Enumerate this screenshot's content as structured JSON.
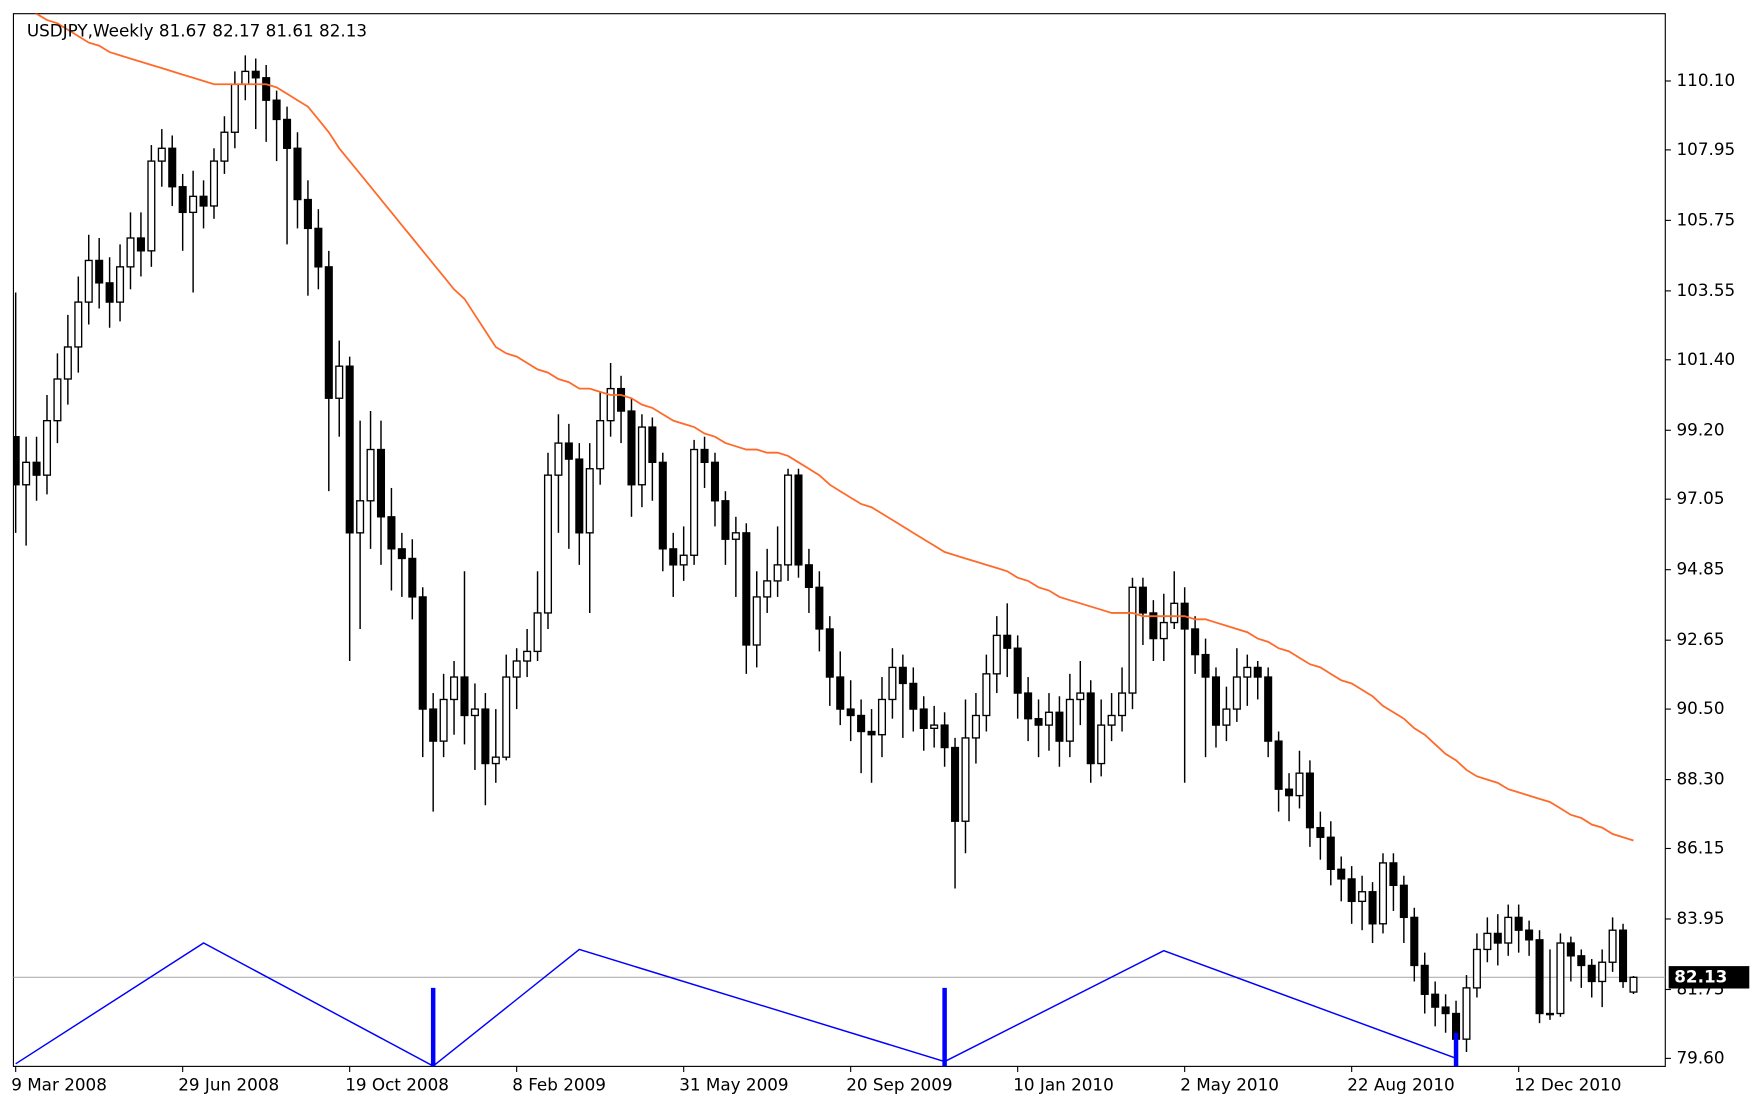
{
  "chart_data": {
    "type": "candlestick",
    "title": "USDJPY,Weekly  81.67 82.17 81.61 82.13",
    "categories": [
      "9 Mar 2008",
      null,
      null,
      null,
      null,
      null,
      null,
      null,
      null,
      null,
      null,
      null,
      null,
      null,
      null,
      null,
      "29 Jun 2008",
      null,
      null,
      null,
      null,
      null,
      null,
      null,
      null,
      null,
      null,
      null,
      null,
      null,
      null,
      null,
      "19 Oct 2008",
      null,
      null,
      null,
      null,
      null,
      null,
      null,
      null,
      null,
      null,
      null,
      null,
      null,
      null,
      null,
      "8 Feb 2009",
      null,
      null,
      null,
      null,
      null,
      null,
      null,
      null,
      null,
      null,
      null,
      null,
      null,
      null,
      null,
      "31 May 2009",
      null,
      null,
      null,
      null,
      null,
      null,
      null,
      null,
      null,
      null,
      null,
      null,
      null,
      null,
      null,
      "20 Sep 2009",
      null,
      null,
      null,
      null,
      null,
      null,
      null,
      null,
      null,
      null,
      null,
      null,
      null,
      null,
      null,
      "10 Jan 2010",
      null,
      null,
      null,
      null,
      null,
      null,
      null,
      null,
      null,
      null,
      null,
      null,
      null,
      null,
      null,
      "2 May 2010",
      null,
      null,
      null,
      null,
      null,
      null,
      null,
      null,
      null,
      null,
      null,
      null,
      null,
      null,
      null,
      "22 Aug 2010",
      null,
      null,
      null,
      null,
      null,
      null,
      null,
      null,
      null,
      null,
      null,
      null,
      null,
      null,
      null,
      "12 Dec 2010",
      null,
      null,
      null,
      null,
      null,
      null,
      null,
      null,
      null,
      null,
      null
    ],
    "open": [
      99.0,
      97.5,
      98.2,
      97.8,
      99.5,
      100.8,
      101.8,
      103.2,
      104.5,
      103.8,
      103.2,
      104.3,
      105.2,
      104.8,
      107.6,
      108.0,
      106.8,
      106.0,
      106.5,
      106.2,
      107.6,
      108.5,
      110.0,
      110.4,
      110.2,
      109.5,
      108.9,
      108.0,
      106.4,
      105.5,
      104.3,
      100.2,
      101.2,
      96.0,
      97.0,
      98.6,
      96.5,
      95.5,
      95.2,
      94.0,
      90.5,
      89.5,
      90.8,
      91.5,
      90.3,
      90.5,
      88.8,
      89.0,
      91.5,
      92.0,
      92.3,
      93.5,
      97.8,
      98.8,
      98.3,
      96.0,
      98.0,
      99.5,
      100.5,
      99.8,
      97.5,
      99.3,
      98.2,
      95.5,
      95.0,
      95.3,
      98.6,
      98.2,
      97.0,
      95.8,
      96.0,
      92.5,
      94.0,
      94.5,
      95.0,
      97.8,
      95.0,
      94.3,
      93.0,
      91.5,
      90.5,
      90.3,
      89.8,
      89.7,
      90.8,
      91.8,
      91.3,
      90.5,
      89.9,
      90.0,
      89.3,
      87.0,
      89.6,
      90.3,
      91.6,
      92.8,
      92.4,
      91.0,
      90.2,
      90.0,
      90.4,
      89.5,
      90.8,
      91.0,
      88.8,
      90.0,
      90.3,
      91.0,
      94.3,
      93.5,
      92.7,
      93.2,
      93.8,
      93.0,
      92.2,
      91.5,
      90.0,
      90.5,
      91.5,
      91.8,
      91.5,
      89.5,
      88.0,
      87.8,
      88.5,
      86.8,
      86.5,
      85.5,
      85.2,
      84.5,
      84.8,
      83.8,
      85.7,
      85.0,
      84.0,
      82.5,
      81.6,
      81.2,
      81.0,
      80.2,
      81.8,
      83.0,
      83.5,
      83.2,
      84.0,
      83.6,
      83.3,
      81.0,
      81.0,
      83.2,
      82.8,
      82.5,
      82.0,
      82.6,
      83.6,
      81.67
    ],
    "high": [
      103.5,
      99.0,
      99.0,
      100.3,
      101.6,
      102.8,
      104.0,
      105.3,
      105.2,
      104.6,
      105.0,
      106.0,
      106.0,
      108.1,
      108.6,
      108.4,
      107.2,
      107.3,
      107.0,
      108.0,
      109.0,
      110.4,
      110.9,
      110.8,
      110.6,
      109.8,
      109.3,
      108.5,
      107.0,
      106.1,
      104.8,
      102.0,
      101.5,
      99.5,
      99.8,
      99.5,
      97.4,
      96.0,
      95.8,
      94.3,
      91.0,
      91.6,
      92.0,
      94.8,
      91.3,
      91.0,
      90.5,
      92.2,
      92.4,
      93.0,
      94.8,
      98.5,
      99.7,
      99.4,
      98.8,
      98.8,
      100.4,
      101.3,
      100.9,
      100.2,
      99.7,
      99.6,
      98.5,
      96.0,
      96.2,
      98.9,
      99.0,
      98.5,
      97.3,
      96.5,
      96.3,
      94.8,
      95.5,
      96.2,
      98.0,
      98.0,
      95.5,
      94.8,
      93.4,
      92.3,
      91.4,
      90.8,
      90.5,
      91.5,
      92.4,
      92.2,
      91.8,
      90.9,
      90.6,
      90.4,
      89.6,
      90.8,
      91.0,
      92.2,
      93.4,
      93.8,
      92.8,
      91.5,
      90.8,
      91.0,
      90.9,
      91.6,
      92.0,
      91.4,
      90.8,
      91.0,
      91.8,
      94.6,
      94.6,
      93.9,
      94.1,
      94.8,
      94.3,
      93.4,
      92.7,
      91.8,
      91.2,
      92.4,
      92.2,
      92.0,
      91.8,
      89.8,
      88.5,
      89.2,
      88.9,
      87.3,
      87.0,
      85.9,
      85.6,
      85.3,
      85.1,
      86.0,
      86.0,
      85.3,
      84.3,
      82.9,
      82.0,
      81.6,
      81.4,
      82.2,
      83.5,
      84.0,
      84.1,
      84.4,
      84.4,
      83.9,
      83.6,
      83.0,
      83.5,
      83.4,
      83.0,
      82.7,
      83.0,
      84.0,
      83.8,
      82.17
    ],
    "low": [
      96.0,
      95.6,
      97.0,
      97.2,
      98.8,
      100.0,
      101.0,
      102.5,
      103.0,
      102.4,
      102.6,
      103.6,
      104.0,
      104.3,
      106.8,
      106.2,
      104.8,
      103.5,
      105.5,
      105.8,
      107.2,
      108.0,
      109.5,
      108.6,
      108.2,
      107.6,
      105.0,
      105.5,
      103.4,
      103.6,
      97.3,
      99.0,
      92.0,
      93.0,
      95.5,
      95.0,
      94.2,
      94.0,
      93.3,
      89.0,
      87.3,
      89.0,
      89.7,
      89.4,
      88.6,
      87.5,
      88.2,
      88.9,
      90.5,
      91.5,
      92.0,
      93.0,
      96.0,
      95.5,
      95.0,
      93.5,
      97.5,
      99.0,
      98.8,
      96.5,
      96.8,
      97.0,
      94.8,
      94.0,
      94.5,
      95.0,
      97.4,
      96.2,
      95.0,
      94.0,
      91.6,
      91.8,
      93.5,
      94.0,
      94.5,
      94.6,
      93.5,
      92.3,
      90.6,
      90.0,
      89.5,
      88.5,
      88.2,
      89.0,
      90.2,
      89.6,
      89.8,
      89.2,
      89.3,
      88.7,
      84.9,
      86.0,
      88.8,
      89.8,
      91.0,
      91.5,
      90.2,
      89.5,
      89.0,
      89.2,
      88.7,
      89.0,
      90.0,
      88.2,
      88.4,
      89.5,
      89.8,
      90.5,
      92.5,
      92.0,
      92.0,
      93.0,
      88.2,
      91.6,
      89.0,
      89.3,
      89.5,
      90.1,
      90.6,
      90.8,
      89.0,
      87.3,
      87.0,
      87.4,
      86.2,
      85.8,
      85.0,
      84.5,
      83.8,
      83.6,
      83.2,
      83.5,
      84.2,
      83.2,
      82.0,
      81.0,
      80.6,
      80.4,
      79.6,
      79.8,
      81.5,
      82.6,
      82.5,
      82.8,
      82.9,
      82.8,
      80.7,
      80.8,
      80.9,
      82.0,
      81.8,
      81.5,
      81.2,
      82.3,
      81.8,
      81.61
    ],
    "close": [
      97.5,
      98.2,
      97.8,
      99.5,
      100.8,
      101.8,
      103.2,
      104.5,
      103.8,
      103.2,
      104.3,
      105.2,
      104.8,
      107.6,
      108.0,
      106.8,
      106.0,
      106.5,
      106.2,
      107.6,
      108.5,
      110.0,
      110.4,
      110.2,
      109.5,
      108.9,
      108.0,
      106.4,
      105.5,
      104.3,
      100.2,
      101.2,
      96.0,
      97.0,
      98.6,
      96.5,
      95.5,
      95.2,
      94.0,
      90.5,
      89.5,
      90.8,
      91.5,
      90.3,
      90.5,
      88.8,
      89.0,
      91.5,
      92.0,
      92.3,
      93.5,
      97.8,
      98.8,
      98.3,
      96.0,
      98.0,
      99.5,
      100.5,
      99.8,
      97.5,
      99.3,
      98.2,
      95.5,
      95.0,
      95.3,
      98.6,
      98.2,
      97.0,
      95.8,
      96.0,
      92.5,
      94.0,
      94.5,
      95.0,
      97.8,
      95.0,
      94.3,
      93.0,
      91.5,
      90.5,
      90.3,
      89.8,
      89.7,
      90.8,
      91.8,
      91.3,
      90.5,
      89.9,
      90.0,
      89.3,
      87.0,
      89.6,
      90.3,
      91.6,
      92.8,
      92.4,
      91.0,
      90.2,
      90.0,
      90.4,
      89.5,
      90.8,
      91.0,
      88.8,
      90.0,
      90.3,
      91.0,
      94.3,
      93.5,
      92.7,
      93.2,
      93.8,
      93.0,
      92.2,
      91.5,
      90.0,
      90.5,
      91.5,
      91.8,
      91.5,
      89.5,
      88.0,
      87.8,
      88.5,
      86.8,
      86.5,
      85.5,
      85.2,
      84.5,
      84.8,
      83.8,
      85.7,
      85.0,
      84.0,
      82.5,
      81.6,
      81.2,
      81.0,
      80.2,
      81.8,
      83.0,
      83.5,
      83.2,
      84.0,
      83.6,
      83.3,
      81.0,
      81.0,
      83.2,
      82.8,
      82.5,
      82.0,
      82.6,
      83.6,
      82.0,
      82.13
    ],
    "up_color": "#ffffff",
    "down_color": "#000000",
    "ma": {
      "color": "#ff6a2a",
      "values": [
        112.6,
        112.4,
        112.2,
        112.0,
        111.9,
        111.7,
        111.5,
        111.3,
        111.2,
        111.0,
        110.9,
        110.8,
        110.7,
        110.6,
        110.5,
        110.4,
        110.3,
        110.2,
        110.1,
        110.0,
        110.0,
        110.0,
        110.0,
        110.0,
        110.0,
        109.9,
        109.7,
        109.5,
        109.3,
        108.9,
        108.5,
        108.0,
        107.6,
        107.2,
        106.8,
        106.4,
        106.0,
        105.6,
        105.2,
        104.8,
        104.4,
        104.0,
        103.6,
        103.3,
        102.8,
        102.3,
        101.8,
        101.6,
        101.5,
        101.3,
        101.1,
        101.0,
        100.8,
        100.7,
        100.5,
        100.5,
        100.4,
        100.3,
        100.3,
        100.2,
        100.0,
        99.9,
        99.7,
        99.5,
        99.4,
        99.3,
        99.1,
        99.0,
        98.8,
        98.7,
        98.6,
        98.6,
        98.5,
        98.5,
        98.4,
        98.2,
        98.0,
        97.8,
        97.5,
        97.3,
        97.1,
        96.9,
        96.8,
        96.6,
        96.4,
        96.2,
        96.0,
        95.8,
        95.6,
        95.4,
        95.3,
        95.2,
        95.1,
        95.0,
        94.9,
        94.8,
        94.6,
        94.5,
        94.3,
        94.2,
        94.0,
        93.9,
        93.8,
        93.7,
        93.6,
        93.5,
        93.5,
        93.5,
        93.4,
        93.4,
        93.4,
        93.4,
        93.4,
        93.3,
        93.3,
        93.2,
        93.1,
        93.0,
        92.9,
        92.7,
        92.6,
        92.4,
        92.3,
        92.1,
        91.9,
        91.8,
        91.6,
        91.4,
        91.3,
        91.1,
        90.9,
        90.6,
        90.4,
        90.2,
        89.9,
        89.7,
        89.4,
        89.1,
        88.9,
        88.6,
        88.4,
        88.3,
        88.2,
        88.0,
        87.9,
        87.8,
        87.7,
        87.6,
        87.4,
        87.2,
        87.1,
        86.9,
        86.8,
        86.6,
        86.5,
        86.4
      ]
    },
    "zigzag": {
      "color": "#0000ff",
      "x": [
        0,
        18,
        40,
        54,
        89,
        110,
        138
      ],
      "values": [
        79.43,
        83.2,
        79.36,
        83.0,
        79.5,
        82.96,
        79.6
      ]
    },
    "signals": {
      "color": "#0000ff",
      "x": [
        40,
        89,
        138
      ],
      "values": [
        81.8,
        81.8,
        80.4
      ]
    },
    "last_price": 82.13,
    "ylim": [
      79.35,
      112.2
    ],
    "yticks": [
      {
        "value": 110.1,
        "label": "110.10"
      },
      107.95,
      105.75,
      103.55,
      {
        "value": 101.4,
        "label": "101.40"
      },
      {
        "value": 99.2,
        "label": "99.20"
      },
      97.05,
      94.85,
      92.65,
      {
        "value": 90.5,
        "label": "90.50"
      },
      {
        "value": 88.3,
        "label": "88.30"
      },
      86.15,
      83.95,
      81.75,
      {
        "value": 79.6,
        "label": "79.60"
      }
    ],
    "grid": false
  }
}
